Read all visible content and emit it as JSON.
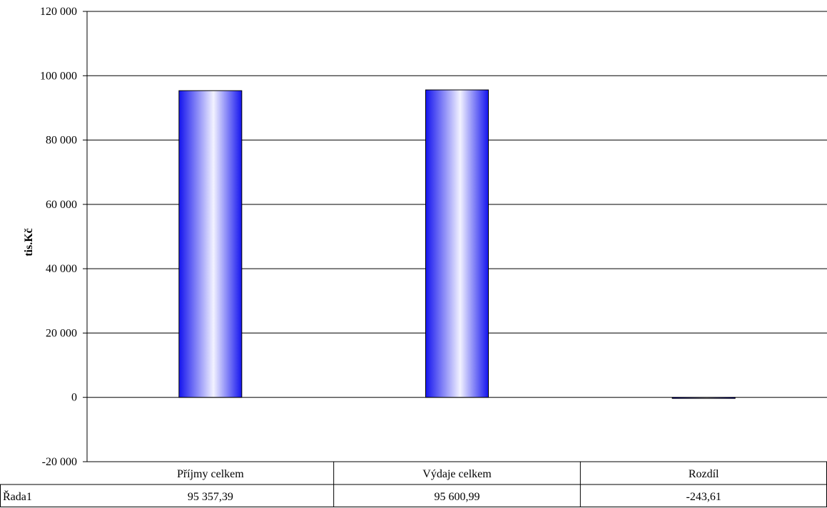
{
  "chart_data": {
    "type": "bar",
    "title": "",
    "xlabel": "",
    "ylabel": "tis.Kč",
    "ylim": [
      -20000,
      120000
    ],
    "yticks": [
      -20000,
      0,
      20000,
      40000,
      60000,
      80000,
      100000,
      120000
    ],
    "ytick_labels": [
      "-20 000",
      "0",
      "20 000",
      "40 000",
      "60 000",
      "80 000",
      "100 000",
      "120 000"
    ],
    "grid": true,
    "legend": "none",
    "categories": [
      "Příjmy celkem",
      "Výdaje celkem",
      "Rozdíl"
    ],
    "series": [
      {
        "name": "Řada1",
        "values": [
          95357.39,
          95600.99,
          -243.61
        ],
        "value_labels": [
          "95 357,39",
          "95 600,99",
          "-243,61"
        ],
        "color": "#0000ff"
      }
    ],
    "data_table": true
  }
}
